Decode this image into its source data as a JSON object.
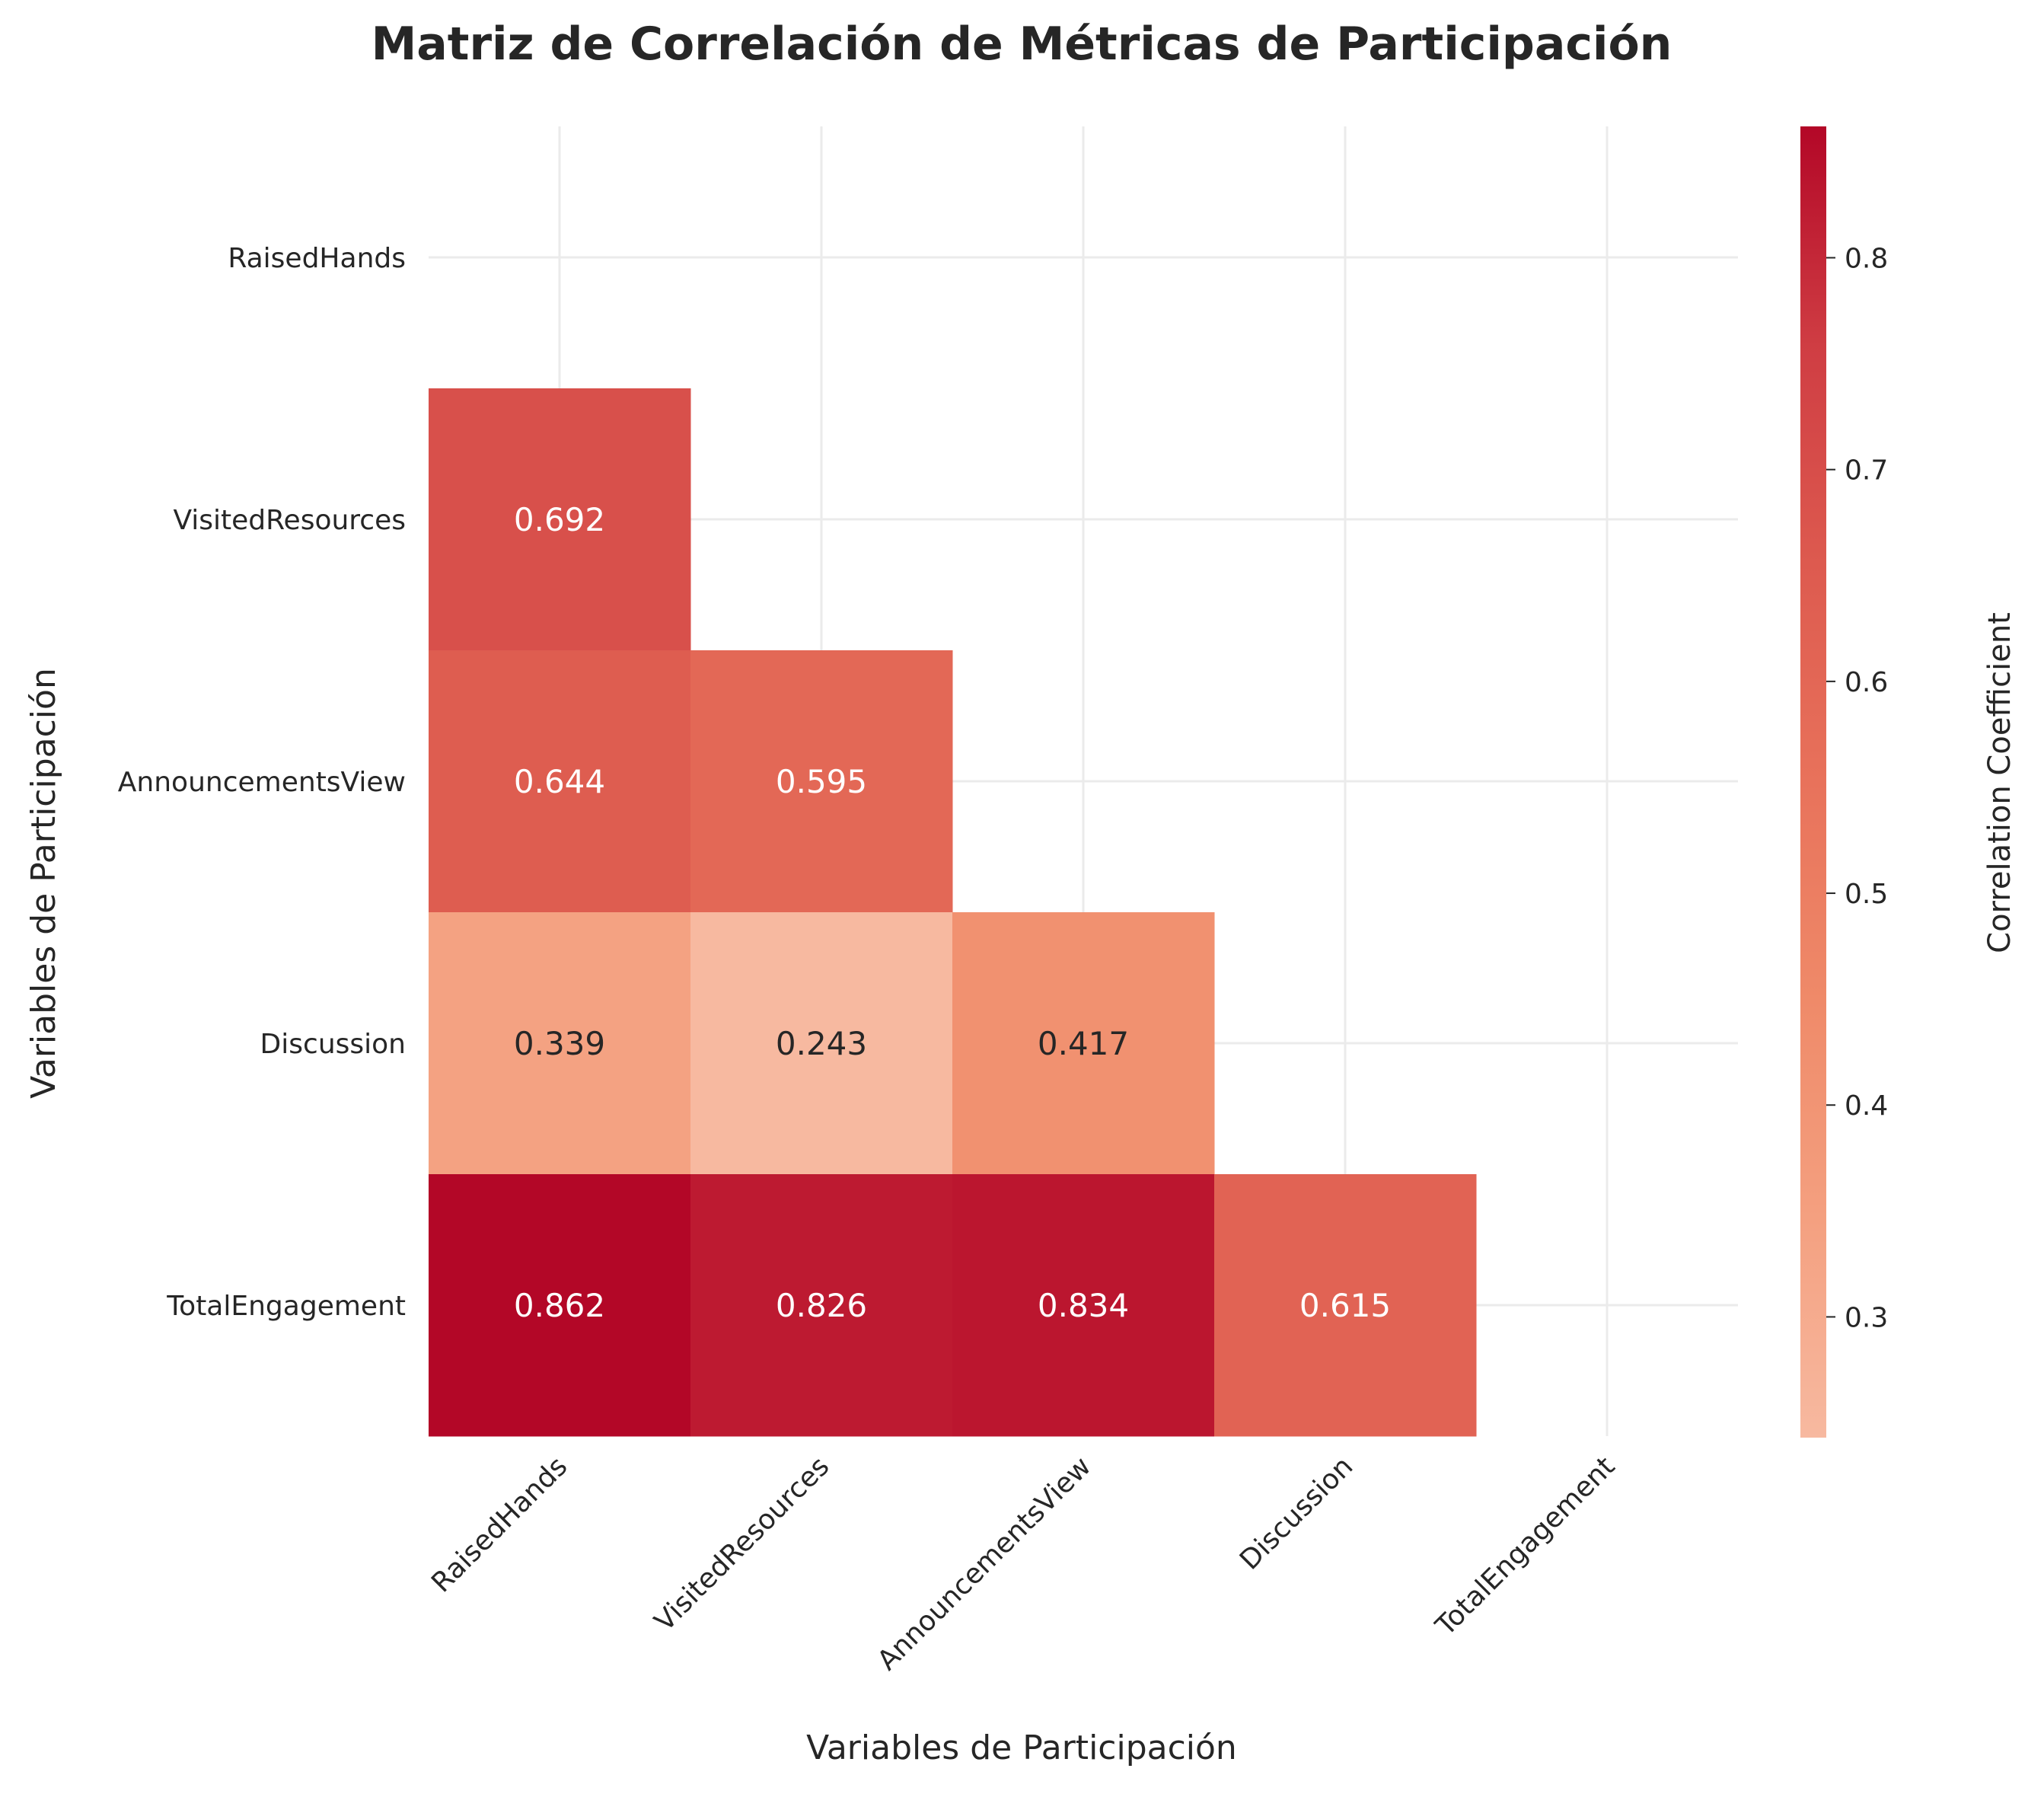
{
  "chart_data": {
    "type": "heatmap",
    "title": "Matriz de Correlación de Métricas de Participación",
    "xlabel": "Variables de Participación",
    "ylabel": "Variables de Participación",
    "variables": [
      "RaisedHands",
      "VisitedResources",
      "AnnouncementsView",
      "Discussion",
      "TotalEngagement"
    ],
    "mask": "upper-triangle-and-diagonal",
    "cells": [
      {
        "row": "VisitedResources",
        "col": "RaisedHands",
        "value": 0.692,
        "label": "0.692"
      },
      {
        "row": "AnnouncementsView",
        "col": "RaisedHands",
        "value": 0.644,
        "label": "0.644"
      },
      {
        "row": "AnnouncementsView",
        "col": "VisitedResources",
        "value": 0.595,
        "label": "0.595"
      },
      {
        "row": "Discussion",
        "col": "RaisedHands",
        "value": 0.339,
        "label": "0.339"
      },
      {
        "row": "Discussion",
        "col": "VisitedResources",
        "value": 0.243,
        "label": "0.243"
      },
      {
        "row": "Discussion",
        "col": "AnnouncementsView",
        "value": 0.417,
        "label": "0.417"
      },
      {
        "row": "TotalEngagement",
        "col": "RaisedHands",
        "value": 0.862,
        "label": "0.862"
      },
      {
        "row": "TotalEngagement",
        "col": "VisitedResources",
        "value": 0.826,
        "label": "0.826"
      },
      {
        "row": "TotalEngagement",
        "col": "AnnouncementsView",
        "value": 0.834,
        "label": "0.834"
      },
      {
        "row": "TotalEngagement",
        "col": "Discussion",
        "value": 0.615,
        "label": "0.615"
      }
    ],
    "colorbar": {
      "label": "Correlation Coefficient",
      "range": [
        0.243,
        0.862
      ],
      "ticks": [
        0.3,
        0.4,
        0.5,
        0.6,
        0.7,
        0.8
      ],
      "tick_labels": [
        "0.3",
        "0.4",
        "0.5",
        "0.6",
        "0.7",
        "0.8"
      ],
      "colormap": [
        "#f7b9a0",
        "#f4a080",
        "#ef8a69",
        "#e8725b",
        "#dd5a4f",
        "#cf3d43",
        "#b30727"
      ]
    },
    "grid": true
  }
}
